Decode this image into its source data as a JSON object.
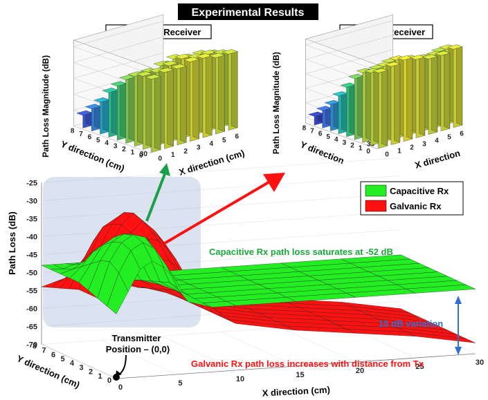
{
  "header": {
    "title": "Experimental Results",
    "capacitive_subtitle": "Capacitive Receiver",
    "galvanic_subtitle": "Galvanic Receiver"
  },
  "chart_data": [
    {
      "type": "bar3d",
      "title": "Capacitive Receiver",
      "xlabel": "X direction (cm)",
      "ylabel": "Y direction (cm)",
      "zlabel": "Path Loss Magnitude (dB)",
      "x_ticks": [
        "0",
        "1",
        "2",
        "3",
        "4",
        "5",
        "6"
      ],
      "y_ticks": [
        "0",
        "1",
        "2",
        "3",
        "4",
        "5",
        "6",
        "7",
        "8"
      ],
      "z_ticks": [
        "30",
        "35",
        "40",
        "45",
        "50",
        "55"
      ],
      "zlim": [
        30,
        57
      ],
      "colormap": [
        "#2a1fb0",
        "#3f6fe6",
        "#20b8c8",
        "#33c77a",
        "#a6d447",
        "#f7e22d"
      ],
      "grid_x": [
        0,
        1,
        2,
        3,
        4,
        5,
        6
      ],
      "grid_y": [
        0,
        1,
        2,
        3,
        4,
        5,
        6,
        7,
        8
      ],
      "values": [
        [
          53,
          54,
          54,
          55,
          55,
          54,
          54
        ],
        [
          53,
          53,
          54,
          55,
          54,
          54,
          53
        ],
        [
          52,
          52,
          53,
          54,
          53,
          53,
          52
        ],
        [
          50,
          50,
          49,
          51,
          50,
          49,
          49
        ],
        [
          47,
          46,
          45,
          47,
          46,
          45,
          44
        ],
        [
          44,
          42,
          41,
          43,
          42,
          40,
          40
        ],
        [
          40,
          38,
          37,
          38,
          37,
          36,
          36
        ],
        [
          37,
          35,
          34,
          34,
          33,
          33,
          34
        ],
        [
          34,
          33,
          33,
          32,
          32,
          32,
          33
        ]
      ]
    },
    {
      "type": "bar3d",
      "title": "Galvanic Receiver",
      "xlabel": "X direction",
      "ylabel": "Y direction",
      "zlabel": "Path Loss Magnitude (dB)",
      "x_ticks": [
        "0",
        "1",
        "2",
        "3",
        "4",
        "5",
        "6"
      ],
      "y_ticks": [
        "0",
        "1",
        "2",
        "3",
        "4",
        "5",
        "6",
        "7",
        "8"
      ],
      "z_ticks": [
        "35",
        "40",
        "45",
        "50",
        "55",
        "60"
      ],
      "zlim": [
        33,
        62
      ],
      "colormap": [
        "#2a1fb0",
        "#3f6fe6",
        "#20b8c8",
        "#33c77a",
        "#a6d447",
        "#f7e22d"
      ],
      "grid_x": [
        0,
        1,
        2,
        3,
        4,
        5,
        6
      ],
      "grid_y": [
        0,
        1,
        2,
        3,
        4,
        5,
        6,
        7,
        8
      ],
      "values": [
        [
          59,
          60,
          61,
          60,
          59,
          59,
          60
        ],
        [
          58,
          59,
          60,
          59,
          58,
          58,
          59
        ],
        [
          57,
          57,
          58,
          57,
          56,
          56,
          57
        ],
        [
          54,
          53,
          54,
          53,
          52,
          52,
          53
        ],
        [
          50,
          48,
          49,
          48,
          47,
          46,
          47
        ],
        [
          46,
          44,
          44,
          43,
          42,
          42,
          43
        ],
        [
          42,
          40,
          40,
          39,
          39,
          39,
          41
        ],
        [
          39,
          37,
          36,
          36,
          37,
          40,
          44
        ],
        [
          36,
          35,
          35,
          35,
          36,
          40,
          46
        ]
      ]
    },
    {
      "type": "surface3d",
      "xlabel": "X direction (cm)",
      "ylabel": "Y direction (cm)",
      "zlabel": "Path Loss (dB)",
      "x_ticks": [
        "0",
        "5",
        "10",
        "15",
        "20",
        "25",
        "30"
      ],
      "y_ticks": [
        "0",
        "1",
        "2",
        "3",
        "4",
        "5",
        "6",
        "7",
        "8"
      ],
      "z_ticks": [
        "-25",
        "-30",
        "-35",
        "-40",
        "-45",
        "-50",
        "-55",
        "-60",
        "-65",
        "-70"
      ],
      "zlim": [
        -70,
        -25
      ],
      "legend": {
        "position": "top-right",
        "entries": [
          "Capacitive Rx",
          "Galvanic Rx"
        ]
      },
      "series": [
        {
          "name": "Capacitive Rx",
          "color": "#22ee22",
          "x": [
            0,
            1,
            2,
            3,
            4,
            5,
            6,
            8,
            10,
            15,
            20,
            25,
            30
          ],
          "y": [
            0,
            1,
            2,
            3,
            4,
            5,
            6,
            7,
            8
          ],
          "values": [
            [
              -52,
              -46,
              -40,
              -38,
              -40,
              -44,
              -50,
              -52,
              -52,
              -52,
              -52,
              -52,
              -52
            ],
            [
              -51,
              -42,
              -36,
              -34,
              -36,
              -41,
              -48,
              -52,
              -52,
              -52,
              -52,
              -52,
              -52
            ],
            [
              -50,
              -40,
              -35,
              -33,
              -34,
              -39,
              -47,
              -52,
              -52,
              -52,
              -52,
              -52,
              -52
            ],
            [
              -49,
              -41,
              -36,
              -34,
              -35,
              -40,
              -48,
              -52,
              -52,
              -52,
              -52,
              -52,
              -52
            ],
            [
              -48,
              -43,
              -38,
              -36,
              -38,
              -42,
              -49,
              -52,
              -52,
              -52,
              -52,
              -52,
              -52
            ],
            [
              -48,
              -45,
              -41,
              -40,
              -41,
              -45,
              -50,
              -52,
              -52,
              -52,
              -52,
              -52,
              -52
            ],
            [
              -48,
              -47,
              -45,
              -44,
              -45,
              -48,
              -51,
              -52,
              -52,
              -52,
              -52,
              -52,
              -52
            ],
            [
              -48,
              -48,
              -47,
              -47,
              -48,
              -50,
              -52,
              -52,
              -52,
              -52,
              -52,
              -52,
              -52
            ],
            [
              -48,
              -48,
              -48,
              -48,
              -49,
              -51,
              -52,
              -52,
              -52,
              -52,
              -52,
              -52,
              -52
            ]
          ]
        },
        {
          "name": "Galvanic Rx",
          "color": "#ff1111",
          "x": [
            0,
            1,
            2,
            3,
            4,
            5,
            6,
            8,
            10,
            15,
            20,
            25,
            30
          ],
          "y": [
            0,
            1,
            2,
            3,
            4,
            5,
            6,
            7,
            8
          ],
          "values": [
            [
              -52,
              -42,
              -33,
              -30,
              -33,
              -38,
              -44,
              -52,
              -57,
              -60,
              -62,
              -64,
              -67
            ],
            [
              -51,
              -38,
              -31,
              -28,
              -31,
              -36,
              -42,
              -51,
              -57,
              -60,
              -62,
              -64,
              -67
            ],
            [
              -50,
              -36,
              -30,
              -27,
              -30,
              -35,
              -41,
              -51,
              -57,
              -60,
              -62,
              -64,
              -67
            ],
            [
              -50,
              -37,
              -31,
              -28,
              -31,
              -36,
              -42,
              -51,
              -57,
              -60,
              -62,
              -64,
              -67
            ],
            [
              -50,
              -40,
              -33,
              -31,
              -33,
              -38,
              -44,
              -52,
              -57,
              -60,
              -62,
              -64,
              -67
            ],
            [
              -51,
              -44,
              -38,
              -36,
              -38,
              -42,
              -47,
              -53,
              -57,
              -60,
              -62,
              -64,
              -67
            ],
            [
              -52,
              -48,
              -44,
              -42,
              -44,
              -47,
              -50,
              -54,
              -57,
              -60,
              -62,
              -64,
              -67
            ],
            [
              -53,
              -51,
              -49,
              -48,
              -49,
              -51,
              -53,
              -55,
              -57,
              -60,
              -62,
              -64,
              -67
            ],
            [
              -54,
              -53,
              -52,
              -52,
              -52,
              -53,
              -54,
              -56,
              -57,
              -60,
              -62,
              -64,
              -67
            ]
          ]
        }
      ],
      "annotations": {
        "capacitive_note": "Capacitive Rx path loss saturates at -52 dB",
        "galvanic_note": "Galvanic Rx path loss increases with distance from Tx",
        "variation": "15 dB variation",
        "tx_line1": "Transmitter",
        "tx_line2": "Position – (0,0)"
      }
    }
  ]
}
